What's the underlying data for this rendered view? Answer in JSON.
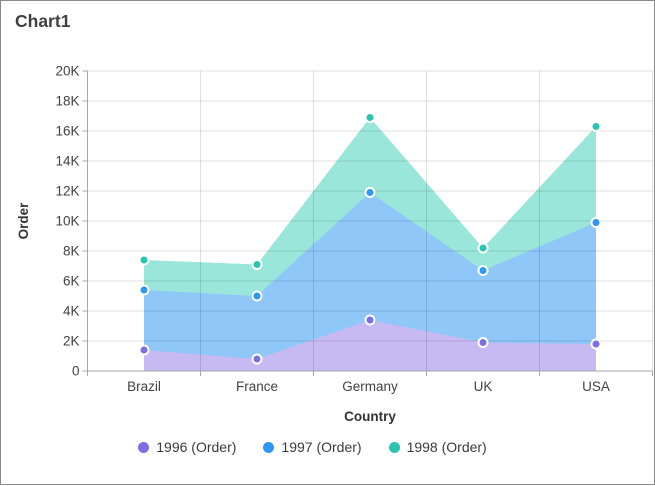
{
  "title": "Chart1",
  "chart_data": {
    "type": "area",
    "categories": [
      "Brazil",
      "France",
      "Germany",
      "UK",
      "USA"
    ],
    "series": [
      {
        "name": "1996 (Order)",
        "color": "#7C6FE4",
        "fill": "#C7BAF3",
        "values": [
          1400,
          800,
          3400,
          1900,
          1800
        ]
      },
      {
        "name": "1997 (Order)",
        "color": "#2E96F3",
        "fill": "#8EC7F8",
        "values": [
          5400,
          5000,
          11900,
          6700,
          9900
        ]
      },
      {
        "name": "1998 (Order)",
        "color": "#2BC3B2",
        "fill": "#9AE6DA",
        "values": [
          7400,
          7100,
          16900,
          8200,
          16300
        ]
      }
    ],
    "xlabel": "Country",
    "ylabel": "Order",
    "ylim": [
      0,
      20000
    ],
    "ytick_step": 2000,
    "ytick_labels": [
      "0",
      "2K",
      "4K",
      "6K",
      "8K",
      "10K",
      "12K",
      "14K",
      "16K",
      "18K",
      "20K"
    ],
    "grid": true,
    "legend_position": "bottom",
    "marker_shape": "circle"
  },
  "colors": {
    "title_text": "#404040",
    "axis_label_text": "#424242",
    "axis_title_text": "#333333",
    "grid_line": "rgba(0,0,0,0.12)",
    "axis_line": "#a6a6a6",
    "card_border": "#8a8a8a",
    "background": "#ffffff",
    "marker_ring": "#ffffff"
  }
}
